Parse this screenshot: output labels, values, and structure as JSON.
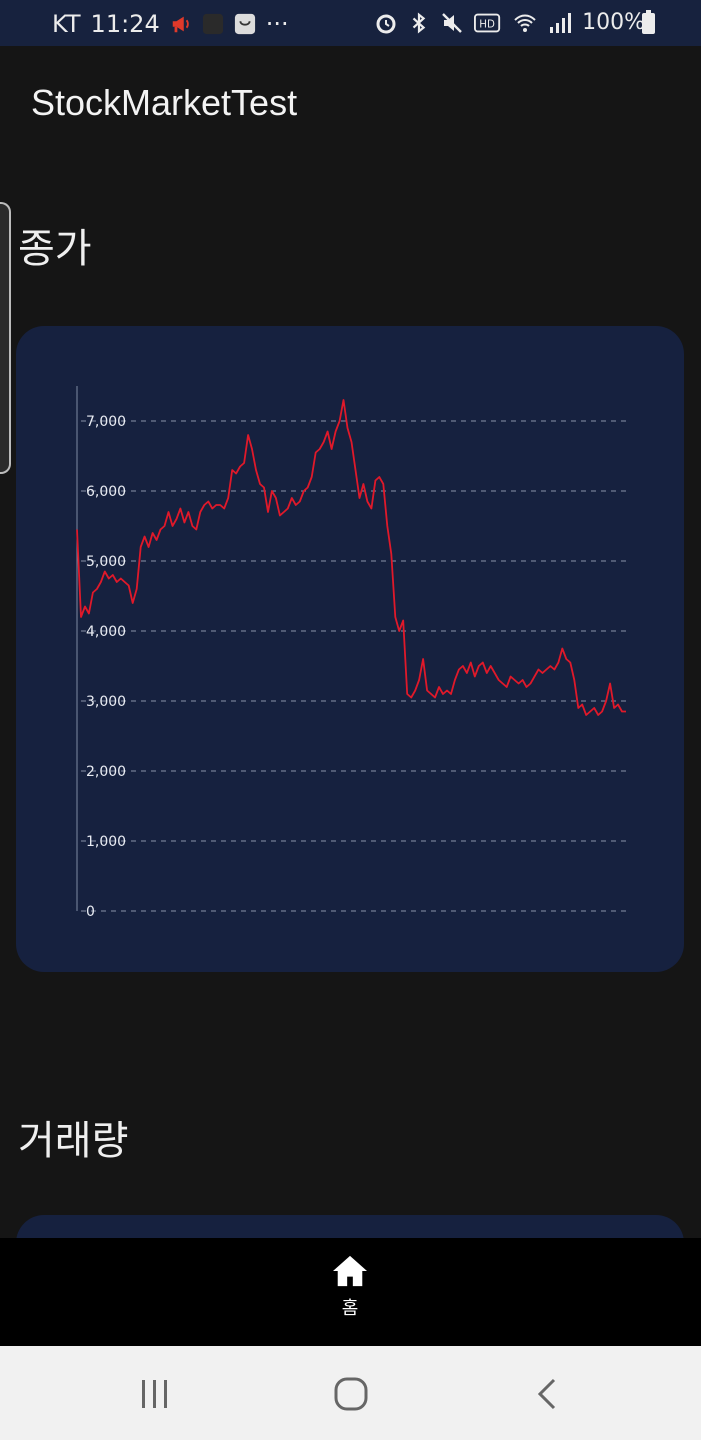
{
  "status_bar": {
    "carrier": "KT",
    "time": "11:24",
    "ellipsis": "···",
    "battery": "100%"
  },
  "app": {
    "title": "StockMarketTest"
  },
  "sections": {
    "close_price": "종가",
    "volume": "거래량"
  },
  "chart_data": {
    "type": "line",
    "title": "",
    "xlabel": "",
    "ylabel": "",
    "ylim": [
      0,
      7500
    ],
    "yticks": [
      "0",
      "1,000",
      "2,000",
      "3,000",
      "4,000",
      "5,000",
      "6,000",
      "7,000"
    ],
    "grid": true,
    "series": [
      {
        "color": "#e0192a",
        "values": [
          5450,
          4200,
          4350,
          4250,
          4550,
          4600,
          4700,
          4850,
          4750,
          4800,
          4700,
          4750,
          4700,
          4650,
          4400,
          4600,
          5200,
          5350,
          5200,
          5400,
          5300,
          5450,
          5500,
          5700,
          5500,
          5600,
          5750,
          5550,
          5700,
          5500,
          5450,
          5700,
          5800,
          5850,
          5750,
          5800,
          5800,
          5750,
          5900,
          6300,
          6250,
          6350,
          6400,
          6800,
          6600,
          6300,
          6100,
          6050,
          5700,
          6000,
          5900,
          5650,
          5700,
          5750,
          5900,
          5800,
          5850,
          6000,
          6050,
          6200,
          6550,
          6600,
          6700,
          6850,
          6600,
          6850,
          7000,
          7300,
          6900,
          6700,
          6300,
          5900,
          6100,
          5850,
          5750,
          6150,
          6200,
          6100,
          5500,
          5100,
          4200,
          4000,
          4150,
          3100,
          3050,
          3150,
          3300,
          3600,
          3150,
          3100,
          3050,
          3200,
          3100,
          3150,
          3100,
          3300,
          3450,
          3500,
          3400,
          3550,
          3350,
          3500,
          3550,
          3400,
          3500,
          3400,
          3300,
          3250,
          3200,
          3350,
          3300,
          3250,
          3300,
          3200,
          3250,
          3350,
          3450,
          3400,
          3450,
          3500,
          3450,
          3550,
          3750,
          3600,
          3550,
          3300,
          2900,
          2950,
          2800,
          2850,
          2900,
          2800,
          2850,
          3000,
          3250,
          2900,
          2950,
          2850,
          2850
        ]
      }
    ]
  },
  "bottom_nav": {
    "home_label": "홈"
  },
  "colors": {
    "background": "#151515",
    "card": "#16213f",
    "status_bar": "#17223e",
    "line": "#e0192a",
    "grid": "#8a93a8"
  },
  "icons": {
    "notification": "megaphone-icon",
    "app1": "square-app-icon",
    "app2": "bag-icon",
    "alarm": "alarm-icon",
    "bluetooth": "bluetooth-icon",
    "mute": "mute-icon",
    "hd": "hd-icon",
    "wifi": "wifi-icon",
    "signal": "signal-icon",
    "battery": "battery-icon",
    "home": "home-icon",
    "recents": "recents-icon",
    "sys_home": "circle-home-icon",
    "back": "back-icon"
  }
}
